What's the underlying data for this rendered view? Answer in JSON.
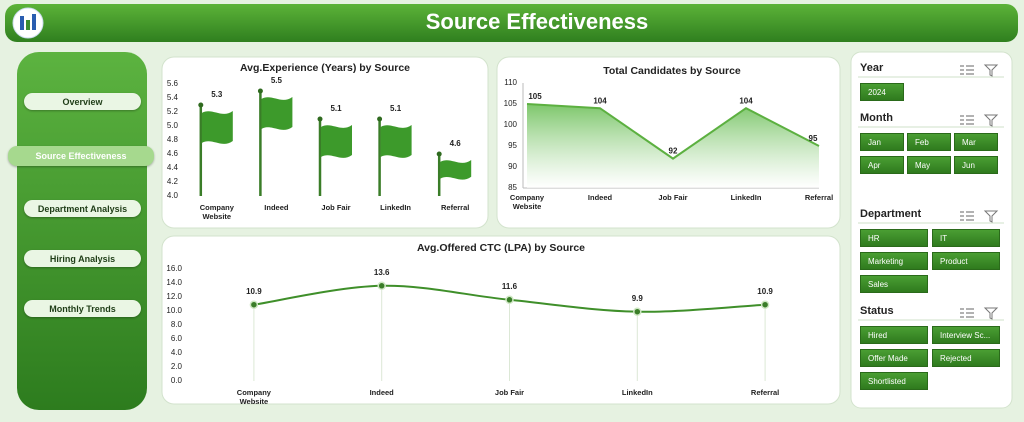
{
  "header": {
    "title": "Source Effectiveness"
  },
  "nav": [
    "Overview",
    "Source Effectiveness",
    "Department Analysis",
    "Hiring Analysis",
    "Monthly Trends"
  ],
  "slicers": [
    {
      "title": "Year",
      "items": [
        "2024"
      ]
    },
    {
      "title": "Month",
      "items": [
        "Jan",
        "Feb",
        "Mar",
        "Apr",
        "May",
        "Jun"
      ]
    },
    {
      "title": "Department",
      "items": [
        "HR",
        "IT",
        "Marketing",
        "Product",
        "Sales"
      ]
    },
    {
      "title": "Status",
      "items": [
        "Hired",
        "Interview Sc...",
        "Offer Made",
        "Rejected",
        "Shortlisted"
      ]
    }
  ],
  "chart_data": [
    {
      "type": "bar",
      "title": "Avg.Experience (Years) by Source",
      "categories": [
        "Company Website",
        "Indeed",
        "Job Fair",
        "LinkedIn",
        "Referral"
      ],
      "values": [
        5.3,
        5.5,
        5.1,
        5.1,
        4.6
      ],
      "color": "#3d9a2b",
      "ylim": [
        4,
        5.6
      ],
      "yticks": [
        {
          "value": 4,
          "label": "4.0"
        },
        4.2,
        4.4,
        4.6,
        4.8,
        {
          "value": 5,
          "label": "5.0"
        },
        5.2,
        5.4,
        5.6
      ]
    },
    {
      "type": "area",
      "title": "Total Candidates by Source",
      "categories": [
        "Company Website",
        "Indeed",
        "Job Fair",
        "LinkedIn",
        "Referral"
      ],
      "values": [
        105,
        104,
        92,
        104,
        95
      ],
      "color": "#5cb040",
      "ylim": [
        85,
        110
      ],
      "yticks": [
        85,
        90,
        95,
        100,
        105,
        110
      ]
    },
    {
      "type": "line",
      "title": "Avg.Offered CTC (LPA) by Source",
      "categories": [
        "Company Website",
        "Indeed",
        "Job Fair",
        "LinkedIn",
        "Referral"
      ],
      "values": [
        10.9,
        13.6,
        11.6,
        9.9,
        10.9
      ],
      "color": "#3f8f2a",
      "ylim": [
        0,
        16
      ],
      "yticks": [
        {
          "value": 0,
          "label": "0.0"
        },
        {
          "value": 2,
          "label": "2.0"
        },
        {
          "value": 4,
          "label": "4.0"
        },
        {
          "value": 6,
          "label": "6.0"
        },
        {
          "value": 8,
          "label": "8.0"
        },
        {
          "value": 10,
          "label": "10.0"
        },
        {
          "value": 12,
          "label": "12.0"
        },
        {
          "value": 14,
          "label": "14.0"
        },
        {
          "value": 16,
          "label": "16.0"
        }
      ]
    }
  ]
}
